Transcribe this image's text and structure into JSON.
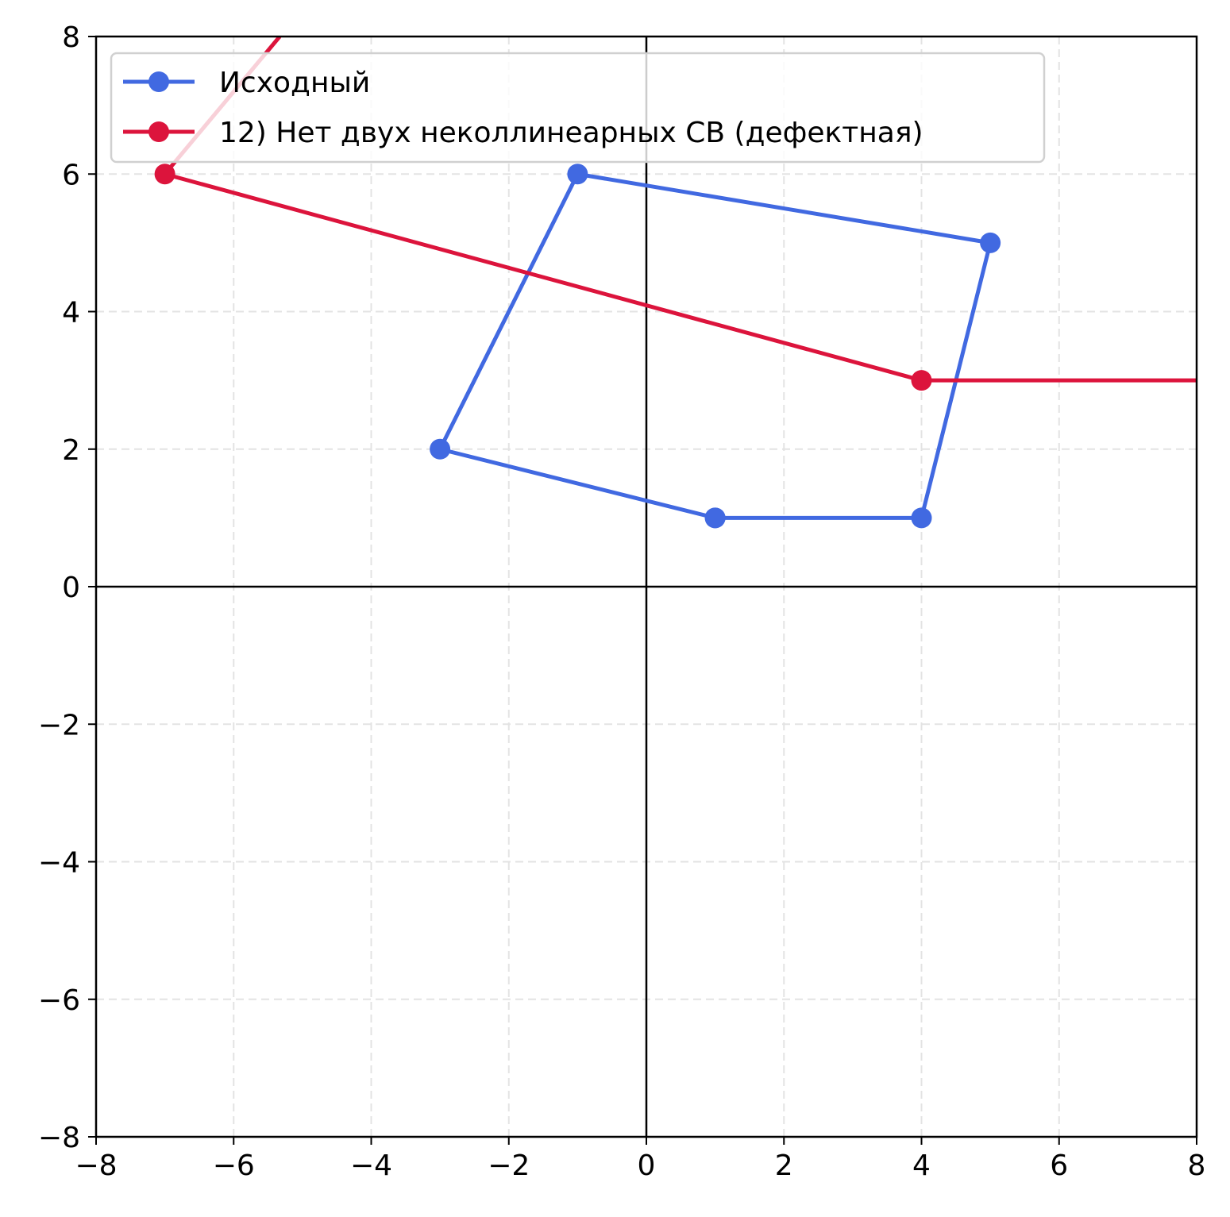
{
  "chart_data": {
    "type": "line",
    "title": "",
    "xlabel": "",
    "ylabel": "",
    "xlim": [
      -8,
      8
    ],
    "ylim": [
      -8,
      8
    ],
    "xticks": [
      -8,
      -6,
      -4,
      -2,
      0,
      2,
      4,
      6,
      8
    ],
    "yticks": [
      -8,
      -6,
      -4,
      -2,
      0,
      2,
      4,
      6,
      8
    ],
    "xtick_labels": [
      "−8",
      "−6",
      "−4",
      "−2",
      "0",
      "2",
      "4",
      "6",
      "8"
    ],
    "ytick_labels": [
      "−8",
      "−6",
      "−4",
      "−2",
      "0",
      "2",
      "4",
      "6",
      "8"
    ],
    "grid": true,
    "grid_style": "dashed",
    "axes_lines_through_origin": true,
    "legend_position": "top-left",
    "series": [
      {
        "name": "Исходный",
        "color": "#4169e1",
        "marker": "circle",
        "points": [
          [
            1,
            1
          ],
          [
            4,
            1
          ],
          [
            5,
            5
          ],
          [
            -1,
            6
          ],
          [
            -3,
            2
          ],
          [
            1,
            1
          ]
        ]
      },
      {
        "name": "12) Нет двух неколлинеарных СВ (дефектная)",
        "color": "#dc143c",
        "marker": "circle",
        "points": [
          [
            4,
            3
          ],
          [
            -7,
            6
          ]
        ],
        "extended_lines": [
          {
            "from": [
              4,
              3
            ],
            "to": [
              8,
              3
            ]
          },
          {
            "from": [
              -7,
              6
            ],
            "to": [
              -5.33,
              8
            ]
          }
        ]
      }
    ]
  }
}
